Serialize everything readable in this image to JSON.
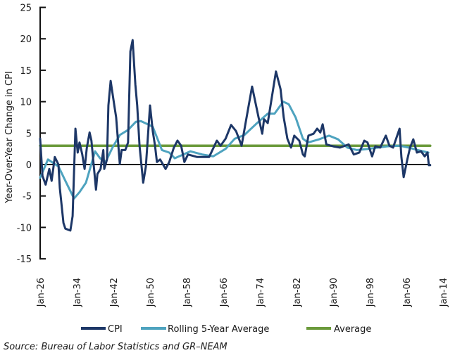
{
  "chart_data": {
    "type": "line",
    "title": "",
    "ylabel": "Year-Over-Year Change in CPI",
    "xlabel": "",
    "ylim": [
      -15,
      25
    ],
    "xlim": [
      "Jan-26",
      "Jan-14"
    ],
    "yticks": [
      "25",
      "20",
      "15",
      "10",
      "5",
      "0",
      "-5",
      "-10",
      "-15"
    ],
    "ytick_values": [
      25,
      20,
      15,
      10,
      5,
      0,
      -5,
      -10,
      -15
    ],
    "xticks": [
      "Jan-26",
      "Jan-34",
      "Jan-42",
      "Jan-50",
      "Jan-58",
      "Jan-66",
      "Jan-74",
      "Jan-82",
      "Jan-90",
      "Jan-98",
      "Jan-06",
      "Jan-14"
    ],
    "xtick_years": [
      1926,
      1934,
      1942,
      1950,
      1958,
      1966,
      1974,
      1982,
      1990,
      1998,
      2006,
      2014
    ],
    "grid": false,
    "legend_position": "bottom",
    "colors": {
      "CPI": "#1d3767",
      "Rolling 5-Year Average": "#4ea3bf",
      "Average": "#6b9a3b",
      "zero_line": "#111111"
    },
    "series": [
      {
        "name": "CPI",
        "x": [
          1926.0,
          1926.5,
          1927.2,
          1928.0,
          1928.5,
          1929.2,
          1930.0,
          1930.3,
          1931.1,
          1931.5,
          1932.6,
          1933.1,
          1933.7,
          1934.2,
          1934.6,
          1935.2,
          1935.7,
          1936.2,
          1936.8,
          1937.2,
          1938.2,
          1938.5,
          1939.2,
          1939.8,
          1940.0,
          1940.6,
          1940.9,
          1941.4,
          1942.2,
          1942.6,
          1943.4,
          1943.8,
          1944.6,
          1945.2,
          1945.7,
          1946.2,
          1946.8,
          1947.2,
          1947.7,
          1948.5,
          1949.1,
          1950.0,
          1950.6,
          1951.1,
          1951.5,
          1952.2,
          1953.4,
          1954.2,
          1955.2,
          1956.0,
          1956.8,
          1957.5,
          1958.3,
          1960.3,
          1962.9,
          1964.6,
          1965.4,
          1966.5,
          1967.7,
          1968.8,
          1970.0,
          1971.1,
          1972.3,
          1973.7,
          1974.5,
          1974.9,
          1975.7,
          1977.5,
          1978.5,
          1979.2,
          1980.0,
          1980.8,
          1981.5,
          1982.6,
          1983.4,
          1983.8,
          1984.6,
          1985.7,
          1986.5,
          1987.2,
          1987.7,
          1988.5,
          1990.0,
          1991.5,
          1993.4,
          1994.5,
          1995.7,
          1996.8,
          1997.5,
          1998.5,
          1999.2,
          2000.3,
          2001.5,
          2002.3,
          2003.1,
          2004.5,
          2004.9,
          2005.4,
          2006.2,
          2006.8,
          2007.5,
          2008.3,
          2009.2,
          2010.0,
          2010.6,
          2010.9,
          2011.2
        ],
        "values": [
          4.1,
          -1.8,
          -3.2,
          -0.7,
          -2.6,
          1.2,
          0,
          -3.7,
          -9.3,
          -10.2,
          -10.5,
          -8.2,
          5.7,
          1.9,
          3.5,
          1.6,
          -0.7,
          2.7,
          5.1,
          3.8,
          -4,
          -1.5,
          -0.7,
          2.3,
          -0.7,
          0.8,
          9.4,
          13.3,
          9.4,
          7.5,
          0.1,
          2.3,
          2.3,
          3.5,
          18,
          19.8,
          12.7,
          9.4,
          3,
          -2.9,
          -0.3,
          9.4,
          5.3,
          3,
          0.4,
          0.8,
          -0.7,
          0.4,
          2.7,
          3.8,
          3,
          0.4,
          1.6,
          1.2,
          1.2,
          3.8,
          3,
          4.1,
          6.3,
          5.3,
          3,
          7.5,
          12.4,
          7.5,
          4.9,
          7.2,
          6.6,
          14.8,
          12,
          7.5,
          4.1,
          2.7,
          4.6,
          3.8,
          1.6,
          1.3,
          4.6,
          4.9,
          5.7,
          5.1,
          6.4,
          3.2,
          2.9,
          2.7,
          3.2,
          1.6,
          1.9,
          3.8,
          3.5,
          1.3,
          2.9,
          2.7,
          4.6,
          3,
          2.7,
          5.7,
          1.2,
          -2,
          0.8,
          2.7,
          4,
          1.9,
          2.1,
          1.3,
          1.9,
          -0.1,
          -0.1
        ]
      },
      {
        "name": "Rolling 5-Year Average",
        "x": [
          1926.0,
          1927.7,
          1930.0,
          1931.5,
          1933.4,
          1934.6,
          1936.0,
          1938.0,
          1939.1,
          1940.3,
          1941.8,
          1943.4,
          1945.2,
          1946.9,
          1948.0,
          1949.5,
          1950.6,
          1952.6,
          1954.2,
          1955.4,
          1958.8,
          1961.4,
          1963.8,
          1966.5,
          1968.5,
          1970.6,
          1973.1,
          1975.7,
          1977.2,
          1979.1,
          1980.3,
          1981.8,
          1983.4,
          1984.5,
          1986.9,
          1989.1,
          1991.1,
          1993.1,
          1995.2,
          1997.7,
          2001.8,
          2004.5,
          2006.5,
          2008.5,
          2010.8
        ],
        "values": [
          -2.1,
          0.8,
          -0.3,
          -2.6,
          -5.4,
          -4.4,
          -2.9,
          2.1,
          1,
          0.4,
          2.7,
          4.7,
          5.5,
          6.8,
          6.9,
          6.4,
          6,
          2.3,
          1.9,
          1,
          2.1,
          1.6,
          1.3,
          2.5,
          4.1,
          4.7,
          6.4,
          8.1,
          8.1,
          10,
          9.6,
          7.5,
          4.1,
          3.5,
          4,
          4.6,
          4,
          2.7,
          2.3,
          2.5,
          2.9,
          3,
          2.7,
          2.3,
          1.9
        ]
      },
      {
        "name": "Average",
        "x": [
          1926.0,
          2011.2
        ],
        "values": [
          3.0,
          3.0
        ]
      }
    ]
  },
  "legend": {
    "cpi": "CPI",
    "rolling": "Rolling 5-Year Average",
    "average": "Average"
  },
  "source": "Source: Bureau of Labor Statistics and GR–NEAM"
}
